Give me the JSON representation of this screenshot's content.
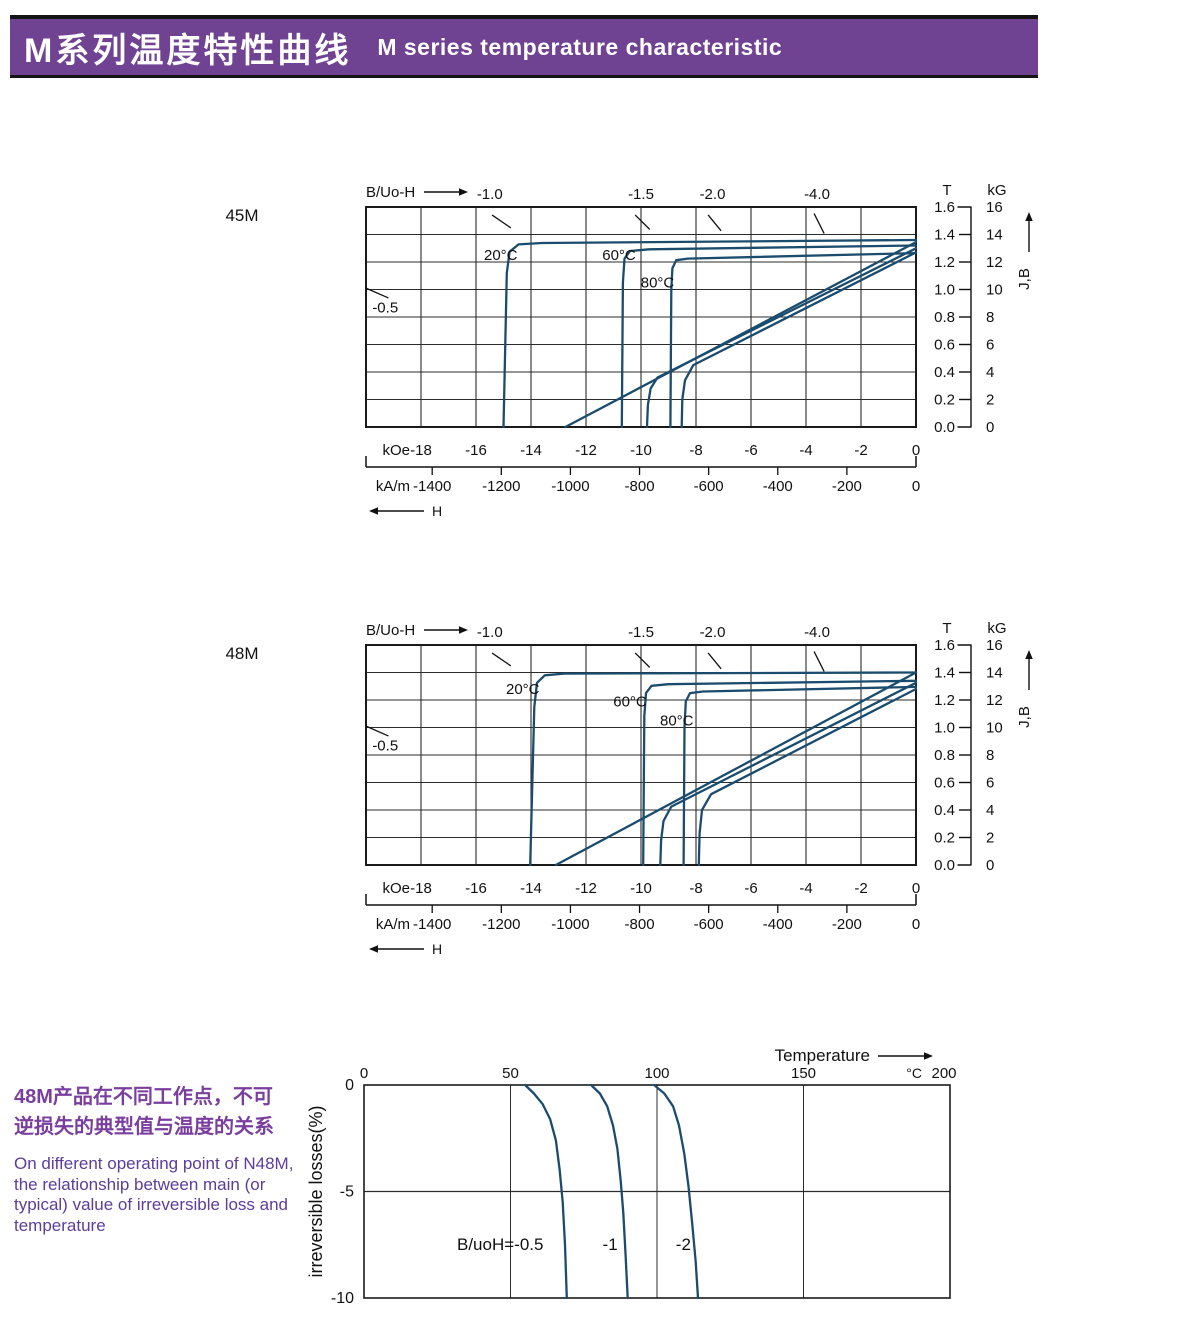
{
  "header": {
    "title_cn": "M系列温度特性曲线",
    "title_en": "M  series temperature characteristic"
  },
  "colors": {
    "banner": "#6f4391",
    "curve": "#1b4c6d",
    "grid": "#2b2b2b",
    "border": "#1a1a1a",
    "text": "#111111",
    "note_cn": "#7a3f9e",
    "note_en": "#5c3d99"
  },
  "demag_common": {
    "corner_label": "B/Uo-H",
    "load_line_labels": [
      {
        "text": "-1.0",
        "H": -15.5,
        "slash": [
          [
            -15.4,
            1.54
          ],
          [
            -14.75,
            1.45
          ]
        ]
      },
      {
        "text": "-1.5",
        "H": -10.0,
        "slash": [
          [
            -10.2,
            1.54
          ],
          [
            -9.7,
            1.44
          ]
        ]
      },
      {
        "text": "-2.0",
        "H": -7.4,
        "slash": [
          [
            -7.55,
            1.54
          ],
          [
            -7.1,
            1.43
          ]
        ]
      },
      {
        "text": "-4.0",
        "H": -3.6,
        "slash": [
          [
            -3.7,
            1.55
          ],
          [
            -3.35,
            1.41
          ]
        ]
      }
    ],
    "side_load_label": {
      "text": "-0.5",
      "H": -19.3,
      "T": 0.87,
      "slash": [
        [
          -20,
          1.01
        ],
        [
          -19.2,
          0.94
        ]
      ]
    },
    "x_axis_primary": {
      "unit": "kOe",
      "ticks": [
        -18,
        -16,
        -14,
        -12,
        -10,
        -8,
        -6,
        -4,
        -2,
        0
      ]
    },
    "x_axis_secondary": {
      "unit": "kA/m",
      "ticks": [
        -1400,
        -1200,
        -1000,
        -800,
        -600,
        -400,
        -200,
        0
      ]
    },
    "h_arrow_label": "H",
    "right_axis": {
      "unit_t": "T",
      "unit_kg": "kG",
      "t_ticks": [
        1.6,
        1.4,
        1.2,
        1.0,
        0.8,
        0.6,
        0.4,
        0.2,
        0.0
      ],
      "kg_ticks": [
        16,
        14,
        12,
        10,
        8,
        6,
        4,
        2,
        0
      ],
      "jb_label": "J,B"
    },
    "xlim": [
      -20,
      0
    ],
    "ylim": [
      0,
      1.6
    ]
  },
  "chart_data": [
    {
      "id": "demag_45m",
      "type": "line",
      "name": "45M",
      "xlabel": "kOe / kA/m",
      "ylabel": "T / kG",
      "temp_labels": [
        {
          "text": "20°C",
          "H": -15.1,
          "T": 1.25
        },
        {
          "text": "60°C",
          "H": -10.8,
          "T": 1.25
        },
        {
          "text": "80°C",
          "H": -9.4,
          "T": 1.05
        }
      ],
      "series": [
        {
          "name": "20C_J",
          "points": [
            [
              0,
              1.36
            ],
            [
              -13.6,
              1.338
            ],
            [
              -14.45,
              1.328
            ],
            [
              -14.78,
              1.275
            ],
            [
              -14.88,
              1.12
            ],
            [
              -15.0,
              0
            ]
          ]
        },
        {
          "name": "20C_B",
          "points": [
            [
              0,
              1.345
            ],
            [
              -12.75,
              0
            ]
          ]
        },
        {
          "name": "60C_J",
          "points": [
            [
              0,
              1.32
            ],
            [
              -9.7,
              1.292
            ],
            [
              -10.4,
              1.28
            ],
            [
              -10.6,
              1.225
            ],
            [
              -10.66,
              1.05
            ],
            [
              -10.7,
              0
            ]
          ]
        },
        {
          "name": "60C_B",
          "points": [
            [
              0,
              1.3
            ],
            [
              -9.4,
              0.36
            ],
            [
              -9.65,
              0.28
            ],
            [
              -9.75,
              0.16
            ],
            [
              -9.78,
              0
            ]
          ]
        },
        {
          "name": "80C_J",
          "points": [
            [
              0,
              1.265
            ],
            [
              -8.3,
              1.225
            ],
            [
              -8.72,
              1.213
            ],
            [
              -8.86,
              1.155
            ],
            [
              -8.9,
              1.0
            ],
            [
              -8.93,
              0
            ]
          ]
        },
        {
          "name": "80C_B",
          "points": [
            [
              0,
              1.27
            ],
            [
              -8.1,
              0.45
            ],
            [
              -8.4,
              0.34
            ],
            [
              -8.5,
              0.2
            ],
            [
              -8.52,
              0
            ]
          ]
        }
      ]
    },
    {
      "id": "demag_48m",
      "type": "line",
      "name": "48M",
      "xlabel": "kOe / kA/m",
      "ylabel": "T / kG",
      "temp_labels": [
        {
          "text": "20°C",
          "H": -14.3,
          "T": 1.28
        },
        {
          "text": "60°C",
          "H": -10.4,
          "T": 1.19
        },
        {
          "text": "80°C",
          "H": -8.7,
          "T": 1.05
        }
      ],
      "series": [
        {
          "name": "20C_J",
          "points": [
            [
              0,
              1.4
            ],
            [
              -12.8,
              1.392
            ],
            [
              -13.5,
              1.38
            ],
            [
              -13.78,
              1.325
            ],
            [
              -13.88,
              1.15
            ],
            [
              -14.03,
              0
            ]
          ]
        },
        {
          "name": "20C_B",
          "points": [
            [
              0,
              1.4
            ],
            [
              -13.1,
              0
            ]
          ]
        },
        {
          "name": "60C_J",
          "points": [
            [
              0,
              1.34
            ],
            [
              -9.0,
              1.315
            ],
            [
              -9.62,
              1.303
            ],
            [
              -9.82,
              1.25
            ],
            [
              -9.88,
              1.08
            ],
            [
              -9.92,
              0
            ]
          ]
        },
        {
          "name": "60C_B",
          "points": [
            [
              0,
              1.325
            ],
            [
              -8.9,
              0.425
            ],
            [
              -9.18,
              0.32
            ],
            [
              -9.27,
              0.18
            ],
            [
              -9.3,
              0
            ]
          ]
        },
        {
          "name": "80C_J",
          "points": [
            [
              0,
              1.295
            ],
            [
              -7.75,
              1.262
            ],
            [
              -8.22,
              1.25
            ],
            [
              -8.37,
              1.19
            ],
            [
              -8.42,
              1.0
            ],
            [
              -8.45,
              0
            ]
          ]
        },
        {
          "name": "80C_B",
          "points": [
            [
              0,
              1.28
            ],
            [
              -7.45,
              0.515
            ],
            [
              -7.78,
              0.4
            ],
            [
              -7.87,
              0.23
            ],
            [
              -7.9,
              0
            ]
          ]
        }
      ]
    },
    {
      "id": "irreversible_loss",
      "type": "line",
      "xlabel": "Temperature",
      "x_unit": "°C",
      "ylabel": "irreversible  losses(%)",
      "xticks": [
        0,
        50,
        100,
        150,
        200
      ],
      "yticks": [
        0,
        -5,
        -10
      ],
      "xlim": [
        0,
        200
      ],
      "ylim": [
        -10,
        0
      ],
      "grid_x": [
        50,
        100,
        150
      ],
      "grid_y": [
        -5
      ],
      "series": [
        {
          "name": "B/uoH=-0.5",
          "points": [
            [
              55,
              0
            ],
            [
              58,
              -0.4
            ],
            [
              61,
              -0.9
            ],
            [
              63.5,
              -1.6
            ],
            [
              65.5,
              -2.6
            ],
            [
              66.8,
              -4.0
            ],
            [
              67.8,
              -5.5
            ],
            [
              68.6,
              -7.5
            ],
            [
              69.2,
              -10
            ]
          ]
        },
        {
          "name": "-1",
          "points": [
            [
              77.5,
              0
            ],
            [
              80.5,
              -0.4
            ],
            [
              83,
              -1.0
            ],
            [
              85,
              -1.9
            ],
            [
              86.5,
              -3.0
            ],
            [
              87.6,
              -4.5
            ],
            [
              88.5,
              -6.0
            ],
            [
              89.3,
              -8.0
            ],
            [
              90,
              -10
            ]
          ]
        },
        {
          "name": "-2",
          "points": [
            [
              99,
              0
            ],
            [
              102.5,
              -0.4
            ],
            [
              105.5,
              -1.0
            ],
            [
              107.5,
              -1.9
            ],
            [
              109.3,
              -3.2
            ],
            [
              110.8,
              -4.8
            ],
            [
              112,
              -6.5
            ],
            [
              113.2,
              -8.3
            ],
            [
              114,
              -10
            ]
          ]
        }
      ],
      "curve_labels": [
        {
          "text": "B/uoH=-0.5",
          "x": 46.5,
          "y": -7.5
        },
        {
          "text": "-1",
          "x": 84,
          "y": -7.5
        },
        {
          "text": "-2",
          "x": 109,
          "y": -7.5
        }
      ]
    }
  ],
  "note": {
    "cn_lines": [
      "48M产品在不同工作点，不可",
      "逆损失的典型值与温度的关系"
    ],
    "en_lines": [
      "On different operating point of N48M,",
      "the relationship between main (or",
      "typical) value of irreversible loss and",
      "temperature"
    ]
  }
}
